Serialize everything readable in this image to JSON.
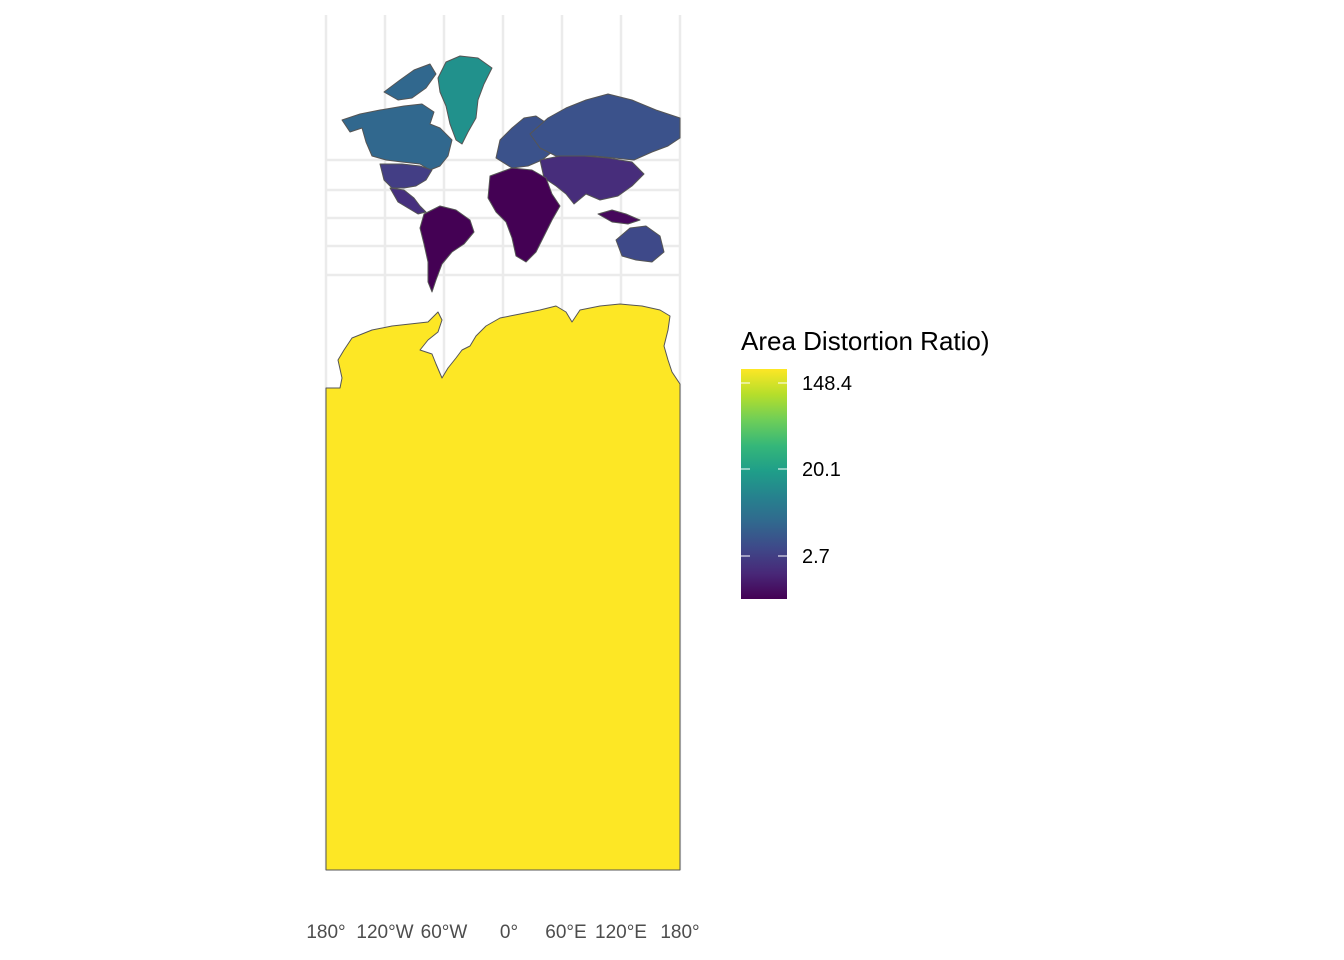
{
  "map": {
    "projection": "mercator",
    "graticule_longitudes": [
      "180°",
      "120°W",
      "60°W",
      "0°",
      "60°E",
      "120°E",
      "180°"
    ],
    "fill_scale": "viridis (log)",
    "border_color": "#555555",
    "gridline_color": "#ebebeb",
    "regions": [
      {
        "name": "Antarctica",
        "fill": "#fde725"
      },
      {
        "name": "Greenland",
        "fill": "#21918c"
      },
      {
        "name": "Canada",
        "fill": "#31688e"
      },
      {
        "name": "Russia",
        "fill": "#3b528b"
      },
      {
        "name": "United States",
        "fill": "#433e85"
      },
      {
        "name": "Brazil",
        "fill": "#440154"
      }
    ]
  },
  "legend": {
    "title": "Area Distortion Ratio)",
    "breaks": [
      "148.4",
      "20.1",
      "2.7"
    ],
    "colors": [
      "#440154",
      "#482878",
      "#3e4989",
      "#31688e",
      "#26828e",
      "#1f9e89",
      "#35b779",
      "#6ece58",
      "#b5de2b",
      "#fde725"
    ]
  }
}
